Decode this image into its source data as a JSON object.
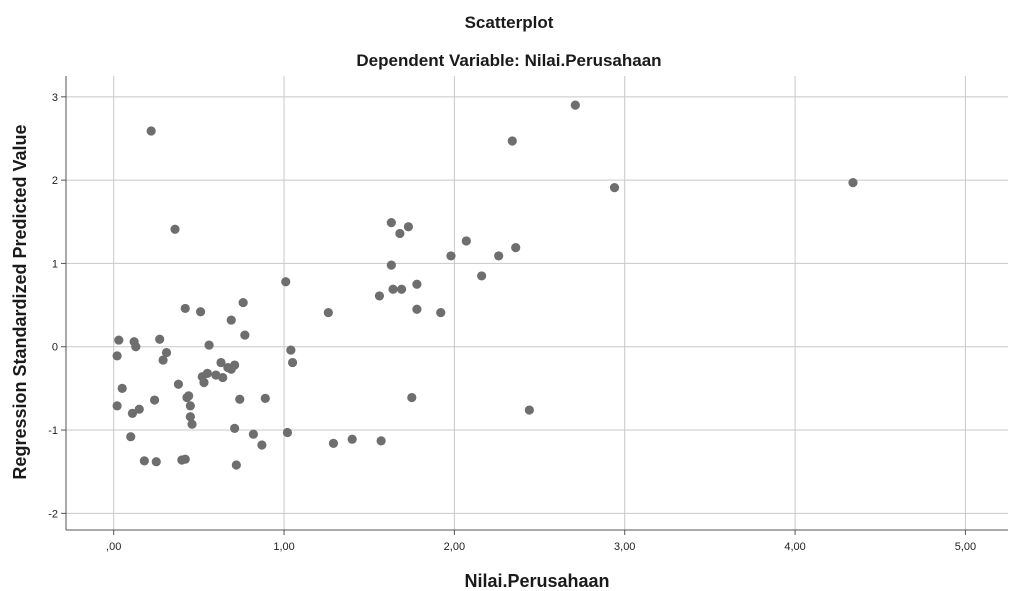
{
  "chart_data": {
    "type": "scatter",
    "title": "Scatterplot",
    "subtitle": "Dependent Variable: Nilai.Perusahaan",
    "xlabel": "Nilai.Perusahaan",
    "ylabel": "Regression Standardized Predicted Value",
    "xlim": [
      -0.28,
      5.25
    ],
    "ylim": [
      -2.2,
      3.25
    ],
    "x_ticks": [
      0,
      1,
      2,
      3,
      4,
      5
    ],
    "x_tick_labels": [
      ",00",
      "1,00",
      "2,00",
      "3,00",
      "4,00",
      "5,00"
    ],
    "y_ticks": [
      3,
      2,
      1,
      0,
      -1,
      -2
    ],
    "y_tick_labels": [
      "3",
      "2",
      "1",
      "0",
      "-1",
      "-2"
    ],
    "grid": true,
    "legend": "none",
    "point_color": "#6e6e6e",
    "grid_color": "#c8c8c8",
    "points": [
      {
        "x": 0.22,
        "y": 2.59
      },
      {
        "x": 0.36,
        "y": 1.41
      },
      {
        "x": 0.03,
        "y": 0.08
      },
      {
        "x": 0.02,
        "y": -0.11
      },
      {
        "x": 0.12,
        "y": 0.06
      },
      {
        "x": 0.13,
        "y": 0.0
      },
      {
        "x": 0.05,
        "y": -0.5
      },
      {
        "x": 0.02,
        "y": -0.71
      },
      {
        "x": 0.15,
        "y": -0.75
      },
      {
        "x": 0.11,
        "y": -0.8
      },
      {
        "x": 0.1,
        "y": -1.08
      },
      {
        "x": 0.18,
        "y": -1.37
      },
      {
        "x": 0.25,
        "y": -1.38
      },
      {
        "x": 0.24,
        "y": -0.64
      },
      {
        "x": 0.27,
        "y": 0.09
      },
      {
        "x": 0.29,
        "y": -0.16
      },
      {
        "x": 0.31,
        "y": -0.07
      },
      {
        "x": 0.38,
        "y": -0.45
      },
      {
        "x": 0.42,
        "y": 0.46
      },
      {
        "x": 0.44,
        "y": -0.59
      },
      {
        "x": 0.43,
        "y": -0.61
      },
      {
        "x": 0.45,
        "y": -0.71
      },
      {
        "x": 0.45,
        "y": -0.84
      },
      {
        "x": 0.46,
        "y": -0.93
      },
      {
        "x": 0.4,
        "y": -1.36
      },
      {
        "x": 0.42,
        "y": -1.35
      },
      {
        "x": 0.51,
        "y": 0.42
      },
      {
        "x": 0.52,
        "y": -0.36
      },
      {
        "x": 0.53,
        "y": -0.43
      },
      {
        "x": 0.55,
        "y": -0.32
      },
      {
        "x": 0.56,
        "y": 0.02
      },
      {
        "x": 0.6,
        "y": -0.34
      },
      {
        "x": 0.63,
        "y": -0.19
      },
      {
        "x": 0.64,
        "y": -0.37
      },
      {
        "x": 0.67,
        "y": -0.25
      },
      {
        "x": 0.69,
        "y": -0.27
      },
      {
        "x": 0.71,
        "y": -0.22
      },
      {
        "x": 0.69,
        "y": 0.32
      },
      {
        "x": 0.76,
        "y": 0.53
      },
      {
        "x": 0.77,
        "y": 0.14
      },
      {
        "x": 0.74,
        "y": -0.63
      },
      {
        "x": 0.71,
        "y": -0.98
      },
      {
        "x": 0.82,
        "y": -1.05
      },
      {
        "x": 0.89,
        "y": -0.62
      },
      {
        "x": 0.87,
        "y": -1.18
      },
      {
        "x": 0.72,
        "y": -1.42
      },
      {
        "x": 1.01,
        "y": 0.78
      },
      {
        "x": 1.04,
        "y": -0.04
      },
      {
        "x": 1.05,
        "y": -0.19
      },
      {
        "x": 1.02,
        "y": -1.03
      },
      {
        "x": 1.26,
        "y": 0.41
      },
      {
        "x": 1.29,
        "y": -1.16
      },
      {
        "x": 1.4,
        "y": -1.11
      },
      {
        "x": 1.56,
        "y": 0.61
      },
      {
        "x": 1.57,
        "y": -1.13
      },
      {
        "x": 1.63,
        "y": 1.49
      },
      {
        "x": 1.63,
        "y": 0.98
      },
      {
        "x": 1.64,
        "y": 0.69
      },
      {
        "x": 1.68,
        "y": 1.36
      },
      {
        "x": 1.69,
        "y": 0.69
      },
      {
        "x": 1.73,
        "y": 1.44
      },
      {
        "x": 1.78,
        "y": 0.75
      },
      {
        "x": 1.78,
        "y": 0.45
      },
      {
        "x": 1.75,
        "y": -0.61
      },
      {
        "x": 1.92,
        "y": 0.41
      },
      {
        "x": 1.98,
        "y": 1.09
      },
      {
        "x": 2.07,
        "y": 1.27
      },
      {
        "x": 2.16,
        "y": 0.85
      },
      {
        "x": 2.26,
        "y": 1.09
      },
      {
        "x": 2.34,
        "y": 2.47
      },
      {
        "x": 2.36,
        "y": 1.19
      },
      {
        "x": 2.44,
        "y": -0.76
      },
      {
        "x": 2.71,
        "y": 2.9
      },
      {
        "x": 2.94,
        "y": 1.91
      },
      {
        "x": 4.34,
        "y": 1.97
      }
    ]
  }
}
